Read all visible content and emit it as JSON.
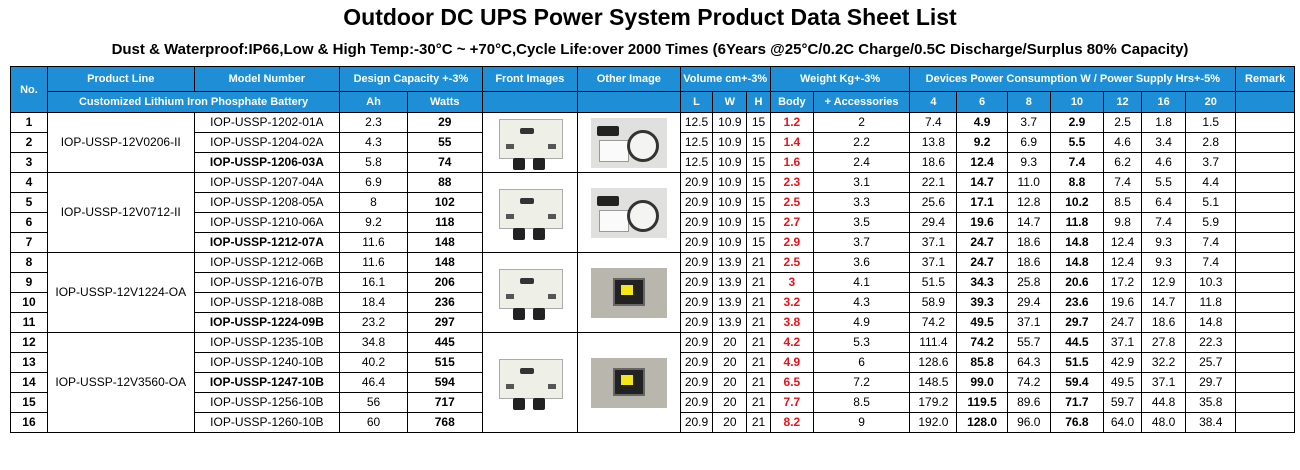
{
  "title": "Outdoor DC UPS Power System Product Data Sheet List",
  "subtitle": "Dust & Waterproof:IP66,Low & High Temp:-30°C ~ +70°C,Cycle Life:over 2000 Times (6Years @25°C/0.2C Charge/0.5C Discharge/Surplus 80% Capacity)",
  "colors": {
    "header_bg": "#1e8fd6",
    "header_text": "#ffffff",
    "body_weight_red": "#e8141a"
  },
  "header": {
    "no": "No.",
    "product_line": "Product Line",
    "model_number": "Model Number",
    "design_capacity": "Design Capacity +-3%",
    "front_images": "Front Images",
    "other_image": "Other Image",
    "volume": "Volume cm+-3%",
    "weight": "Weight Kg+-3%",
    "devices": "Devices Power Consumption W / Power Supply Hrs+-5%",
    "remark": "Remark",
    "battery_type": "Customized Lithium Iron Phosphate Battery",
    "ah": "Ah",
    "watts": "Watts",
    "l": "L",
    "w": "W",
    "h": "H",
    "body": "Body",
    "accessories": "+ Accessories",
    "p4": "4",
    "p6": "6",
    "p8": "8",
    "p10": "10",
    "p12": "12",
    "p16": "16",
    "p20": "20"
  },
  "groups": [
    {
      "product_line": "IOP-USSP-12V0206-II",
      "front_icon": "battery-box-image",
      "other_icon": "accessories-image",
      "rows": [
        {
          "no": "1",
          "model": "IOP-USSP-1202-01A",
          "bold": false,
          "ah": "2.3",
          "watts": "29",
          "l": "12.5",
          "w": "10.9",
          "h": "15",
          "body": "1.2",
          "acc": "2",
          "p4": "7.4",
          "p6": "4.9",
          "p8": "3.7",
          "p10": "2.9",
          "p12": "2.5",
          "p16": "1.8",
          "p20": "1.5"
        },
        {
          "no": "2",
          "model": "IOP-USSP-1204-02A",
          "bold": false,
          "ah": "4.3",
          "watts": "55",
          "l": "12.5",
          "w": "10.9",
          "h": "15",
          "body": "1.4",
          "acc": "2.2",
          "p4": "13.8",
          "p6": "9.2",
          "p8": "6.9",
          "p10": "5.5",
          "p12": "4.6",
          "p16": "3.4",
          "p20": "2.8"
        },
        {
          "no": "3",
          "model": "IOP-USSP-1206-03A",
          "bold": true,
          "ah": "5.8",
          "watts": "74",
          "l": "12.5",
          "w": "10.9",
          "h": "15",
          "body": "1.6",
          "acc": "2.4",
          "p4": "18.6",
          "p6": "12.4",
          "p8": "9.3",
          "p10": "7.4",
          "p12": "6.2",
          "p16": "4.6",
          "p20": "3.7"
        }
      ]
    },
    {
      "product_line": "IOP-USSP-12V0712-II",
      "front_icon": "battery-box-image",
      "other_icon": "accessories-image",
      "rows": [
        {
          "no": "4",
          "model": "IOP-USSP-1207-04A",
          "bold": false,
          "ah": "6.9",
          "watts": "88",
          "l": "20.9",
          "w": "10.9",
          "h": "15",
          "body": "2.3",
          "acc": "3.1",
          "p4": "22.1",
          "p6": "14.7",
          "p8": "11.0",
          "p10": "8.8",
          "p12": "7.4",
          "p16": "5.5",
          "p20": "4.4"
        },
        {
          "no": "5",
          "model": "IOP-USSP-1208-05A",
          "bold": false,
          "ah": "8",
          "watts": "102",
          "l": "20.9",
          "w": "10.9",
          "h": "15",
          "body": "2.5",
          "acc": "3.3",
          "p4": "25.6",
          "p6": "17.1",
          "p8": "12.8",
          "p10": "10.2",
          "p12": "8.5",
          "p16": "6.4",
          "p20": "5.1"
        },
        {
          "no": "6",
          "model": "IOP-USSP-1210-06A",
          "bold": false,
          "ah": "9.2",
          "watts": "118",
          "l": "20.9",
          "w": "10.9",
          "h": "15",
          "body": "2.7",
          "acc": "3.5",
          "p4": "29.4",
          "p6": "19.6",
          "p8": "14.7",
          "p10": "11.8",
          "p12": "9.8",
          "p16": "7.4",
          "p20": "5.9"
        },
        {
          "no": "7",
          "model": "IOP-USSP-1212-07A",
          "bold": true,
          "ah": "11.6",
          "watts": "148",
          "l": "20.9",
          "w": "10.9",
          "h": "15",
          "body": "2.9",
          "acc": "3.7",
          "p4": "37.1",
          "p6": "24.7",
          "p8": "18.6",
          "p10": "14.8",
          "p12": "12.4",
          "p16": "9.3",
          "p20": "7.4"
        }
      ]
    },
    {
      "product_line": "IOP-USSP-12V1224-OA",
      "front_icon": "battery-box-image",
      "other_icon": "solar-panel-image",
      "rows": [
        {
          "no": "8",
          "model": "IOP-USSP-1212-06B",
          "bold": false,
          "ah": "11.6",
          "watts": "148",
          "l": "20.9",
          "w": "13.9",
          "h": "21",
          "body": "2.5",
          "acc": "3.6",
          "p4": "37.1",
          "p6": "24.7",
          "p8": "18.6",
          "p10": "14.8",
          "p12": "12.4",
          "p16": "9.3",
          "p20": "7.4"
        },
        {
          "no": "9",
          "model": "IOP-USSP-1216-07B",
          "bold": false,
          "ah": "16.1",
          "watts": "206",
          "l": "20.9",
          "w": "13.9",
          "h": "21",
          "body": "3",
          "acc": "4.1",
          "p4": "51.5",
          "p6": "34.3",
          "p8": "25.8",
          "p10": "20.6",
          "p12": "17.2",
          "p16": "12.9",
          "p20": "10.3"
        },
        {
          "no": "10",
          "model": "IOP-USSP-1218-08B",
          "bold": false,
          "ah": "18.4",
          "watts": "236",
          "l": "20.9",
          "w": "13.9",
          "h": "21",
          "body": "3.2",
          "acc": "4.3",
          "p4": "58.9",
          "p6": "39.3",
          "p8": "29.4",
          "p10": "23.6",
          "p12": "19.6",
          "p16": "14.7",
          "p20": "11.8"
        },
        {
          "no": "11",
          "model": "IOP-USSP-1224-09B",
          "bold": true,
          "ah": "23.2",
          "watts": "297",
          "l": "20.9",
          "w": "13.9",
          "h": "21",
          "body": "3.8",
          "acc": "4.9",
          "p4": "74.2",
          "p6": "49.5",
          "p8": "37.1",
          "p10": "29.7",
          "p12": "24.7",
          "p16": "18.6",
          "p20": "14.8"
        }
      ]
    },
    {
      "product_line": "IOP-USSP-12V3560-OA",
      "front_icon": "battery-box-image",
      "other_icon": "solar-panel-image",
      "rows": [
        {
          "no": "12",
          "model": "IOP-USSP-1235-10B",
          "bold": false,
          "ah": "34.8",
          "watts": "445",
          "l": "20.9",
          "w": "20",
          "h": "21",
          "body": "4.2",
          "acc": "5.3",
          "p4": "111.4",
          "p6": "74.2",
          "p8": "55.7",
          "p10": "44.5",
          "p12": "37.1",
          "p16": "27.8",
          "p20": "22.3"
        },
        {
          "no": "13",
          "model": "IOP-USSP-1240-10B",
          "bold": false,
          "ah": "40.2",
          "watts": "515",
          "l": "20.9",
          "w": "20",
          "h": "21",
          "body": "4.9",
          "acc": "6",
          "p4": "128.6",
          "p6": "85.8",
          "p8": "64.3",
          "p10": "51.5",
          "p12": "42.9",
          "p16": "32.2",
          "p20": "25.7"
        },
        {
          "no": "14",
          "model": "IOP-USSP-1247-10B",
          "bold": true,
          "ah": "46.4",
          "watts": "594",
          "l": "20.9",
          "w": "20",
          "h": "21",
          "body": "6.5",
          "acc": "7.2",
          "p4": "148.5",
          "p6": "99.0",
          "p8": "74.2",
          "p10": "59.4",
          "p12": "49.5",
          "p16": "37.1",
          "p20": "29.7"
        },
        {
          "no": "15",
          "model": "IOP-USSP-1256-10B",
          "bold": false,
          "ah": "56",
          "watts": "717",
          "l": "20.9",
          "w": "20",
          "h": "21",
          "body": "7.7",
          "acc": "8.5",
          "p4": "179.2",
          "p6": "119.5",
          "p8": "89.6",
          "p10": "71.7",
          "p12": "59.7",
          "p16": "44.8",
          "p20": "35.8"
        },
        {
          "no": "16",
          "model": "IOP-USSP-1260-10B",
          "bold": false,
          "ah": "60",
          "watts": "768",
          "l": "20.9",
          "w": "20",
          "h": "21",
          "body": "8.2",
          "acc": "9",
          "p4": "192.0",
          "p6": "128.0",
          "p8": "96.0",
          "p10": "76.8",
          "p12": "64.0",
          "p16": "48.0",
          "p20": "38.4"
        }
      ]
    }
  ]
}
